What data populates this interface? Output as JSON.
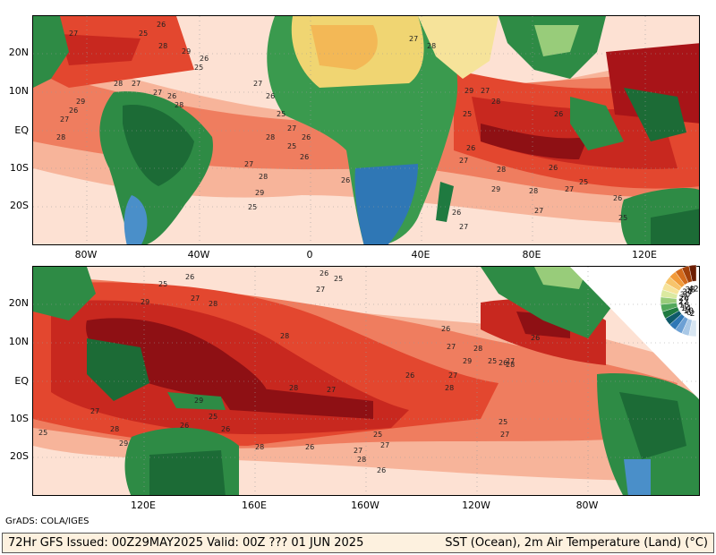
{
  "top_panel": {
    "lat_labels": [
      "20N",
      "10N",
      "EQ",
      "10S",
      "20S"
    ],
    "lon_labels": [
      "80W",
      "40W",
      "0",
      "40E",
      "80E",
      "120E"
    ]
  },
  "bottom_panel": {
    "lat_labels": [
      "20N",
      "10N",
      "EQ",
      "10S",
      "20S"
    ],
    "lon_labels": [
      "120E",
      "160E",
      "160W",
      "120W",
      "80W"
    ]
  },
  "colorbar": {
    "tick_labels": [
      "42",
      "38",
      "34",
      "30",
      "26",
      "22",
      "18",
      "14",
      "10",
      "6",
      "2"
    ],
    "colors": [
      "#6b1d02",
      "#a2400a",
      "#d46b1c",
      "#f29b3a",
      "#f7c46b",
      "#f6e39a",
      "#dbe9a0",
      "#98cc7a",
      "#52a85a",
      "#1f7a40",
      "#0f5a6a",
      "#2f77b5",
      "#6ca0d4",
      "#a9c8e6",
      "#d8e6f2"
    ]
  },
  "contour_labels_top": [
    "26",
    "25",
    "27",
    "28",
    "29",
    "26",
    "25",
    "27",
    "28",
    "26",
    "27",
    "28",
    "29",
    "26",
    "27",
    "28",
    "27",
    "26",
    "25",
    "27",
    "28",
    "26",
    "25",
    "26",
    "27",
    "28",
    "29",
    "25",
    "26",
    "27",
    "28",
    "29",
    "27",
    "28",
    "26",
    "25",
    "26",
    "27",
    "28",
    "26",
    "25",
    "27",
    "28",
    "29",
    "27",
    "26",
    "25",
    "26",
    "27"
  ],
  "contour_labels_bottom": [
    "26",
    "25",
    "27",
    "28",
    "29",
    "28",
    "26",
    "27",
    "25",
    "26",
    "27",
    "28",
    "29",
    "27",
    "28",
    "26",
    "25",
    "27",
    "28",
    "26",
    "27",
    "28",
    "29",
    "25",
    "26",
    "27",
    "28",
    "29",
    "26",
    "25",
    "27",
    "28",
    "26",
    "27",
    "28",
    "26",
    "25",
    "27",
    "26",
    "25"
  ],
  "credit": "GrADS: COLA/IGES",
  "footer": {
    "left": "72Hr GFS Issued: 00Z29MAY2025 Valid: 00Z ??? 01 JUN 2025",
    "right": "SST (Ocean), 2m Air Temperature (Land) (°C)"
  }
}
